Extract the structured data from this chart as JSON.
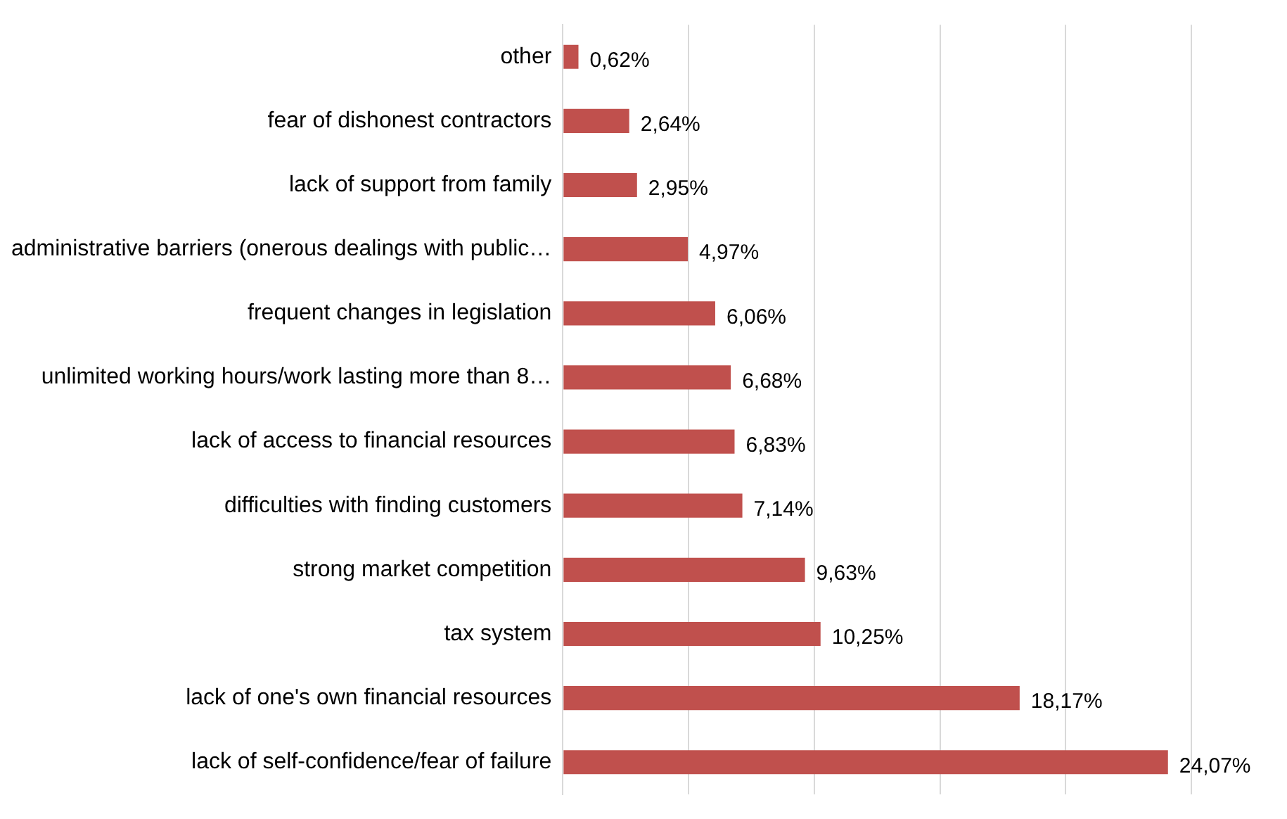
{
  "chart_data": {
    "type": "bar",
    "orientation": "horizontal",
    "categories": [
      "other",
      "fear of dishonest contractors",
      "lack of support from family",
      "administrative barriers (onerous dealings with public…",
      "frequent changes in legislation",
      "unlimited working hours/work lasting more than 8…",
      "lack of access to financial resources",
      "difficulties with finding customers",
      "strong market competition",
      "tax system",
      "lack of one's own financial resources",
      "lack of self-confidence/fear of failure"
    ],
    "values": [
      0.62,
      2.64,
      2.95,
      4.97,
      6.06,
      6.68,
      6.83,
      7.14,
      9.63,
      10.25,
      18.17,
      24.07
    ],
    "value_labels": [
      "0,62%",
      "2,64%",
      "2,95%",
      "4,97%",
      "6,06%",
      "6,68%",
      "6,83%",
      "7,14%",
      "9,63%",
      "10,25%",
      "18,17%",
      "24,07%"
    ],
    "color": "#c0504d",
    "xlim": [
      0,
      25
    ],
    "xticks": [
      {
        "value": 0,
        "label": null
      },
      {
        "value": 5,
        "label": null
      },
      {
        "value": 10,
        "label": null
      },
      {
        "value": 15,
        "label": null
      },
      {
        "value": 20,
        "label": null
      },
      {
        "value": 25,
        "label": null
      }
    ],
    "grid": "x",
    "tick_labels": "y"
  }
}
